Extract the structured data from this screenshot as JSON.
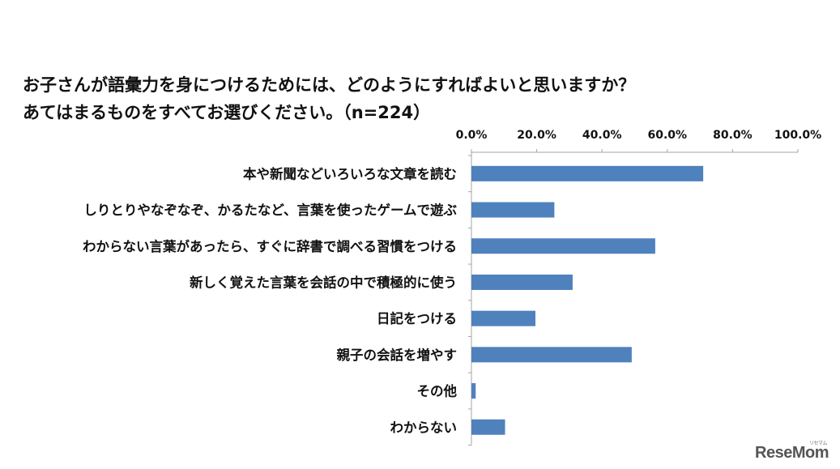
{
  "chart_data": {
    "type": "bar",
    "orientation": "horizontal",
    "title": [
      "お子さんが語彙力を身につけるためには、どのようにすればよいと思いますか？",
      "あてはまるものをすべてお選びください。（n=224）"
    ],
    "categories": [
      "本や新聞などいろいろな文章を読む",
      "しりとりやなぞなぞ、かるたなど、言葉を使ったゲームで遊ぶ",
      "わからない言葉があったら、すぐに辞書で調べる習慣をつける",
      "新しく覚えた言葉を会話の中で積極的に使う",
      "日記をつける",
      "親子の会話を増やす",
      "その他",
      "わからない"
    ],
    "values": [
      71.0,
      25.4,
      56.3,
      31.0,
      19.6,
      49.1,
      1.3,
      10.3
    ],
    "xlim": [
      0,
      100
    ],
    "x_ticks": [
      "0.0%",
      "20.0%",
      "40.0%",
      "60.0%",
      "80.0%",
      "100.0%"
    ],
    "axis_position": "top",
    "grid": false,
    "bar_color": "#4F81BD"
  },
  "logo": {
    "main": "ReseMom",
    "sub": "リセマム"
  }
}
